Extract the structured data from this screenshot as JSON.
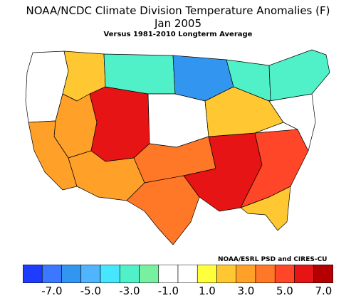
{
  "title": "NOAA/NCDC Climate Division Temperature Anomalies (F)",
  "subtitle": "Jan 2005",
  "baseline": "Versus 1981-2010 Longterm Average",
  "credit": "NOAA/ESRL PSD and CIRES-CU",
  "colorbar": {
    "colors": [
      "#1e3cff",
      "#3c78ff",
      "#3296f0",
      "#50b4ff",
      "#46e6ff",
      "#50f0c8",
      "#78f0a0",
      "#ffffff",
      "#ffffff",
      "#ffff3c",
      "#ffc832",
      "#ffa028",
      "#ff7828",
      "#ff4628",
      "#e61414",
      "#b40000"
    ],
    "tick_labels": [
      "-7.0",
      "-5.0",
      "-3.0",
      "-1.0",
      "1.0",
      "3.0",
      "5.0",
      "7.0"
    ]
  },
  "regions": [
    {
      "name": "pacific-northwest",
      "color": "#ffffff"
    },
    {
      "name": "northern-rockies",
      "color": "#ffc832"
    },
    {
      "name": "great-basin",
      "color": "#ffa028"
    },
    {
      "name": "utah-colorado",
      "color": "#e61414"
    },
    {
      "name": "california",
      "color": "#ffa028"
    },
    {
      "name": "southwest",
      "color": "#ffa028"
    },
    {
      "name": "northern-plains",
      "color": "#50f0c8"
    },
    {
      "name": "upper-midwest",
      "color": "#3296f0"
    },
    {
      "name": "central-plains",
      "color": "#ffffff"
    },
    {
      "name": "southern-plains",
      "color": "#ff7828"
    },
    {
      "name": "texas",
      "color": "#ff7828"
    },
    {
      "name": "mississippi-valley",
      "color": "#e61414"
    },
    {
      "name": "southeast",
      "color": "#ff4628"
    },
    {
      "name": "florida",
      "color": "#ffc832"
    },
    {
      "name": "ohio-valley",
      "color": "#ffc832"
    },
    {
      "name": "great-lakes",
      "color": "#50f0c8"
    },
    {
      "name": "mid-atlantic",
      "color": "#ffffff"
    },
    {
      "name": "northeast",
      "color": "#50f0c8"
    }
  ]
}
